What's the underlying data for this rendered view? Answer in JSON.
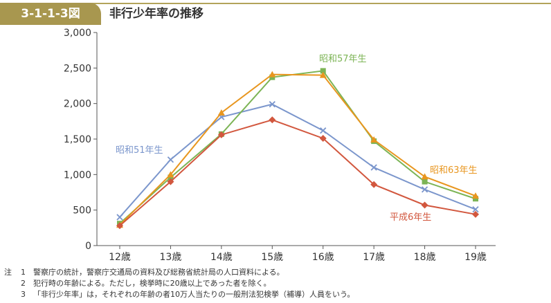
{
  "header": {
    "figure_number": "3-1-1-3図",
    "title": "非行少年率の推移"
  },
  "chart_data": {
    "type": "line",
    "categories": [
      "12歳",
      "13歳",
      "14歳",
      "15歳",
      "16歳",
      "17歳",
      "18歳",
      "19歳"
    ],
    "ylim": [
      0,
      3000
    ],
    "yticks": [
      "0",
      "500",
      "1,000",
      "1,500",
      "2,000",
      "2,500",
      "3,000"
    ],
    "ytick_values": [
      0,
      500,
      1000,
      1500,
      2000,
      2500,
      3000
    ],
    "grid": false,
    "series": [
      {
        "name": "昭和51年生",
        "color": "#7b96cc",
        "marker": "x",
        "values": [
          400,
          1210,
          1810,
          1990,
          1620,
          1100,
          790,
          510
        ]
      },
      {
        "name": "昭和57年生",
        "color": "#7cb455",
        "marker": "square",
        "values": [
          310,
          960,
          1570,
          2370,
          2460,
          1470,
          900,
          660
        ]
      },
      {
        "name": "昭和63年生",
        "color": "#e8961f",
        "marker": "triangle",
        "values": [
          290,
          1000,
          1870,
          2410,
          2400,
          1490,
          970,
          700
        ]
      },
      {
        "name": "平成6年生",
        "color": "#d2573e",
        "marker": "diamond",
        "values": [
          280,
          900,
          1560,
          1770,
          1510,
          860,
          570,
          440
        ]
      }
    ]
  },
  "notes": {
    "prefix": "注",
    "items": [
      {
        "num": "1",
        "text": "警察庁の統計，警察庁交通局の資料及び総務省統計局の人口資料による。"
      },
      {
        "num": "2",
        "text": "犯行時の年齢による。ただし，検挙時に20歳以上であった者を除く。"
      },
      {
        "num": "3",
        "text": "「非行少年率」は，それぞれの年齢の者10万人当たりの一般刑法犯検挙（補導）人員をいう。"
      }
    ]
  }
}
